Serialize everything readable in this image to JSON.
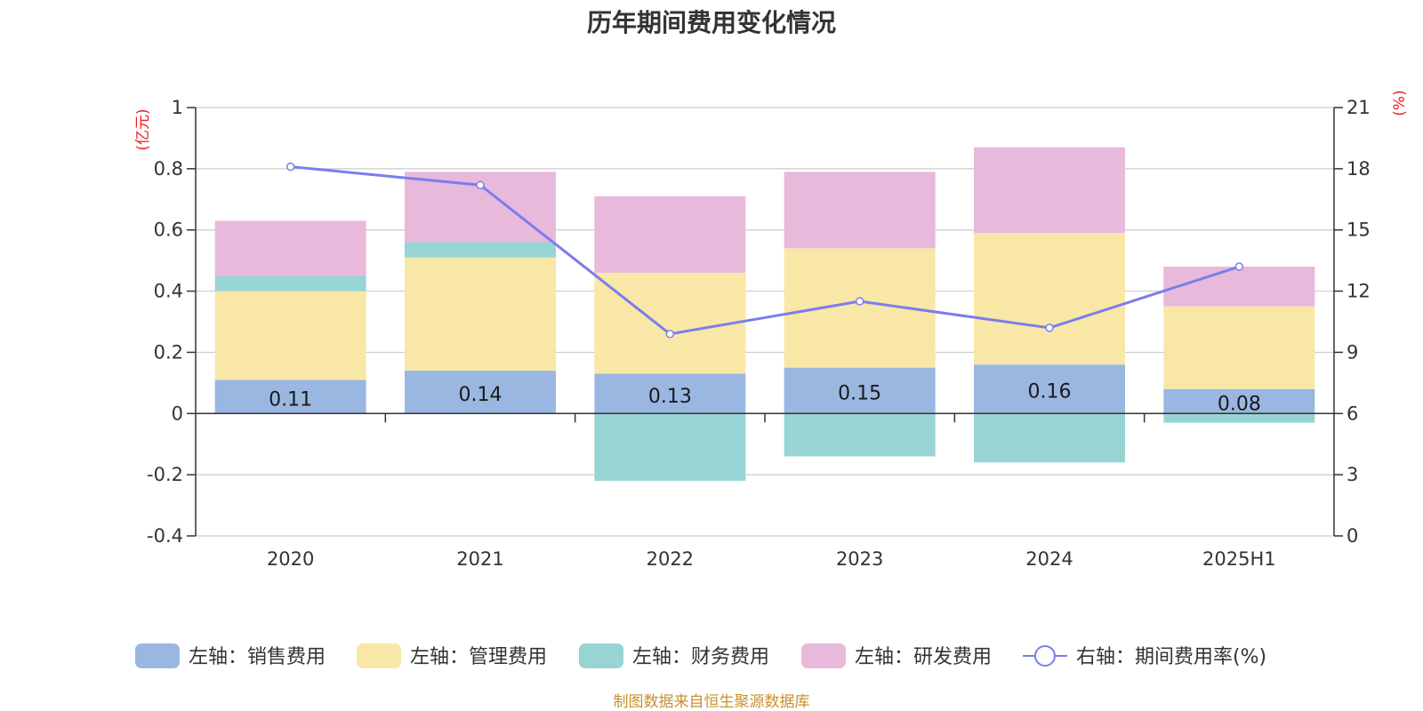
{
  "chart_data": {
    "type": "bar",
    "title": "历年期间费用变化情况",
    "categories": [
      "2020",
      "2021",
      "2022",
      "2023",
      "2024",
      "2025H1"
    ],
    "left_axis": {
      "unit": "(亿元)",
      "ylim": [
        -0.4,
        1
      ],
      "ticks": [
        -0.4,
        -0.2,
        0,
        0.2,
        0.4,
        0.6,
        0.8,
        1
      ]
    },
    "right_axis": {
      "unit": "(%)",
      "ylim": [
        0,
        21
      ],
      "ticks": [
        0,
        3,
        6,
        9,
        12,
        15,
        18,
        21
      ]
    },
    "stacked": true,
    "grid": true,
    "legend_position": "bottom",
    "series": [
      {
        "name": "左轴：销售费用",
        "axis": "left",
        "color": "#9ab7e2",
        "values": [
          0.11,
          0.14,
          0.13,
          0.15,
          0.16,
          0.08
        ],
        "labels": [
          "0.11",
          "0.14",
          "0.13",
          "0.15",
          "0.16",
          "0.08"
        ]
      },
      {
        "name": "左轴：管理费用",
        "axis": "left",
        "color": "#f8e7a7",
        "values": [
          0.29,
          0.37,
          0.33,
          0.39,
          0.43,
          0.27
        ]
      },
      {
        "name": "左轴：财务费用",
        "axis": "left",
        "color": "#98d4d4",
        "values": [
          0.05,
          0.05,
          -0.22,
          -0.14,
          -0.16,
          -0.03
        ]
      },
      {
        "name": "左轴：研发费用",
        "axis": "left",
        "color": "#e8b9da",
        "values": [
          0.18,
          0.23,
          0.25,
          0.25,
          0.28,
          0.13
        ]
      },
      {
        "name": "右轴：期间费用率(%)",
        "axis": "right",
        "type": "line",
        "color": "#7b7ded",
        "values": [
          18.1,
          17.2,
          9.9,
          11.5,
          10.2,
          13.2
        ]
      }
    ]
  },
  "source_note": "制图数据来自恒生聚源数据库"
}
